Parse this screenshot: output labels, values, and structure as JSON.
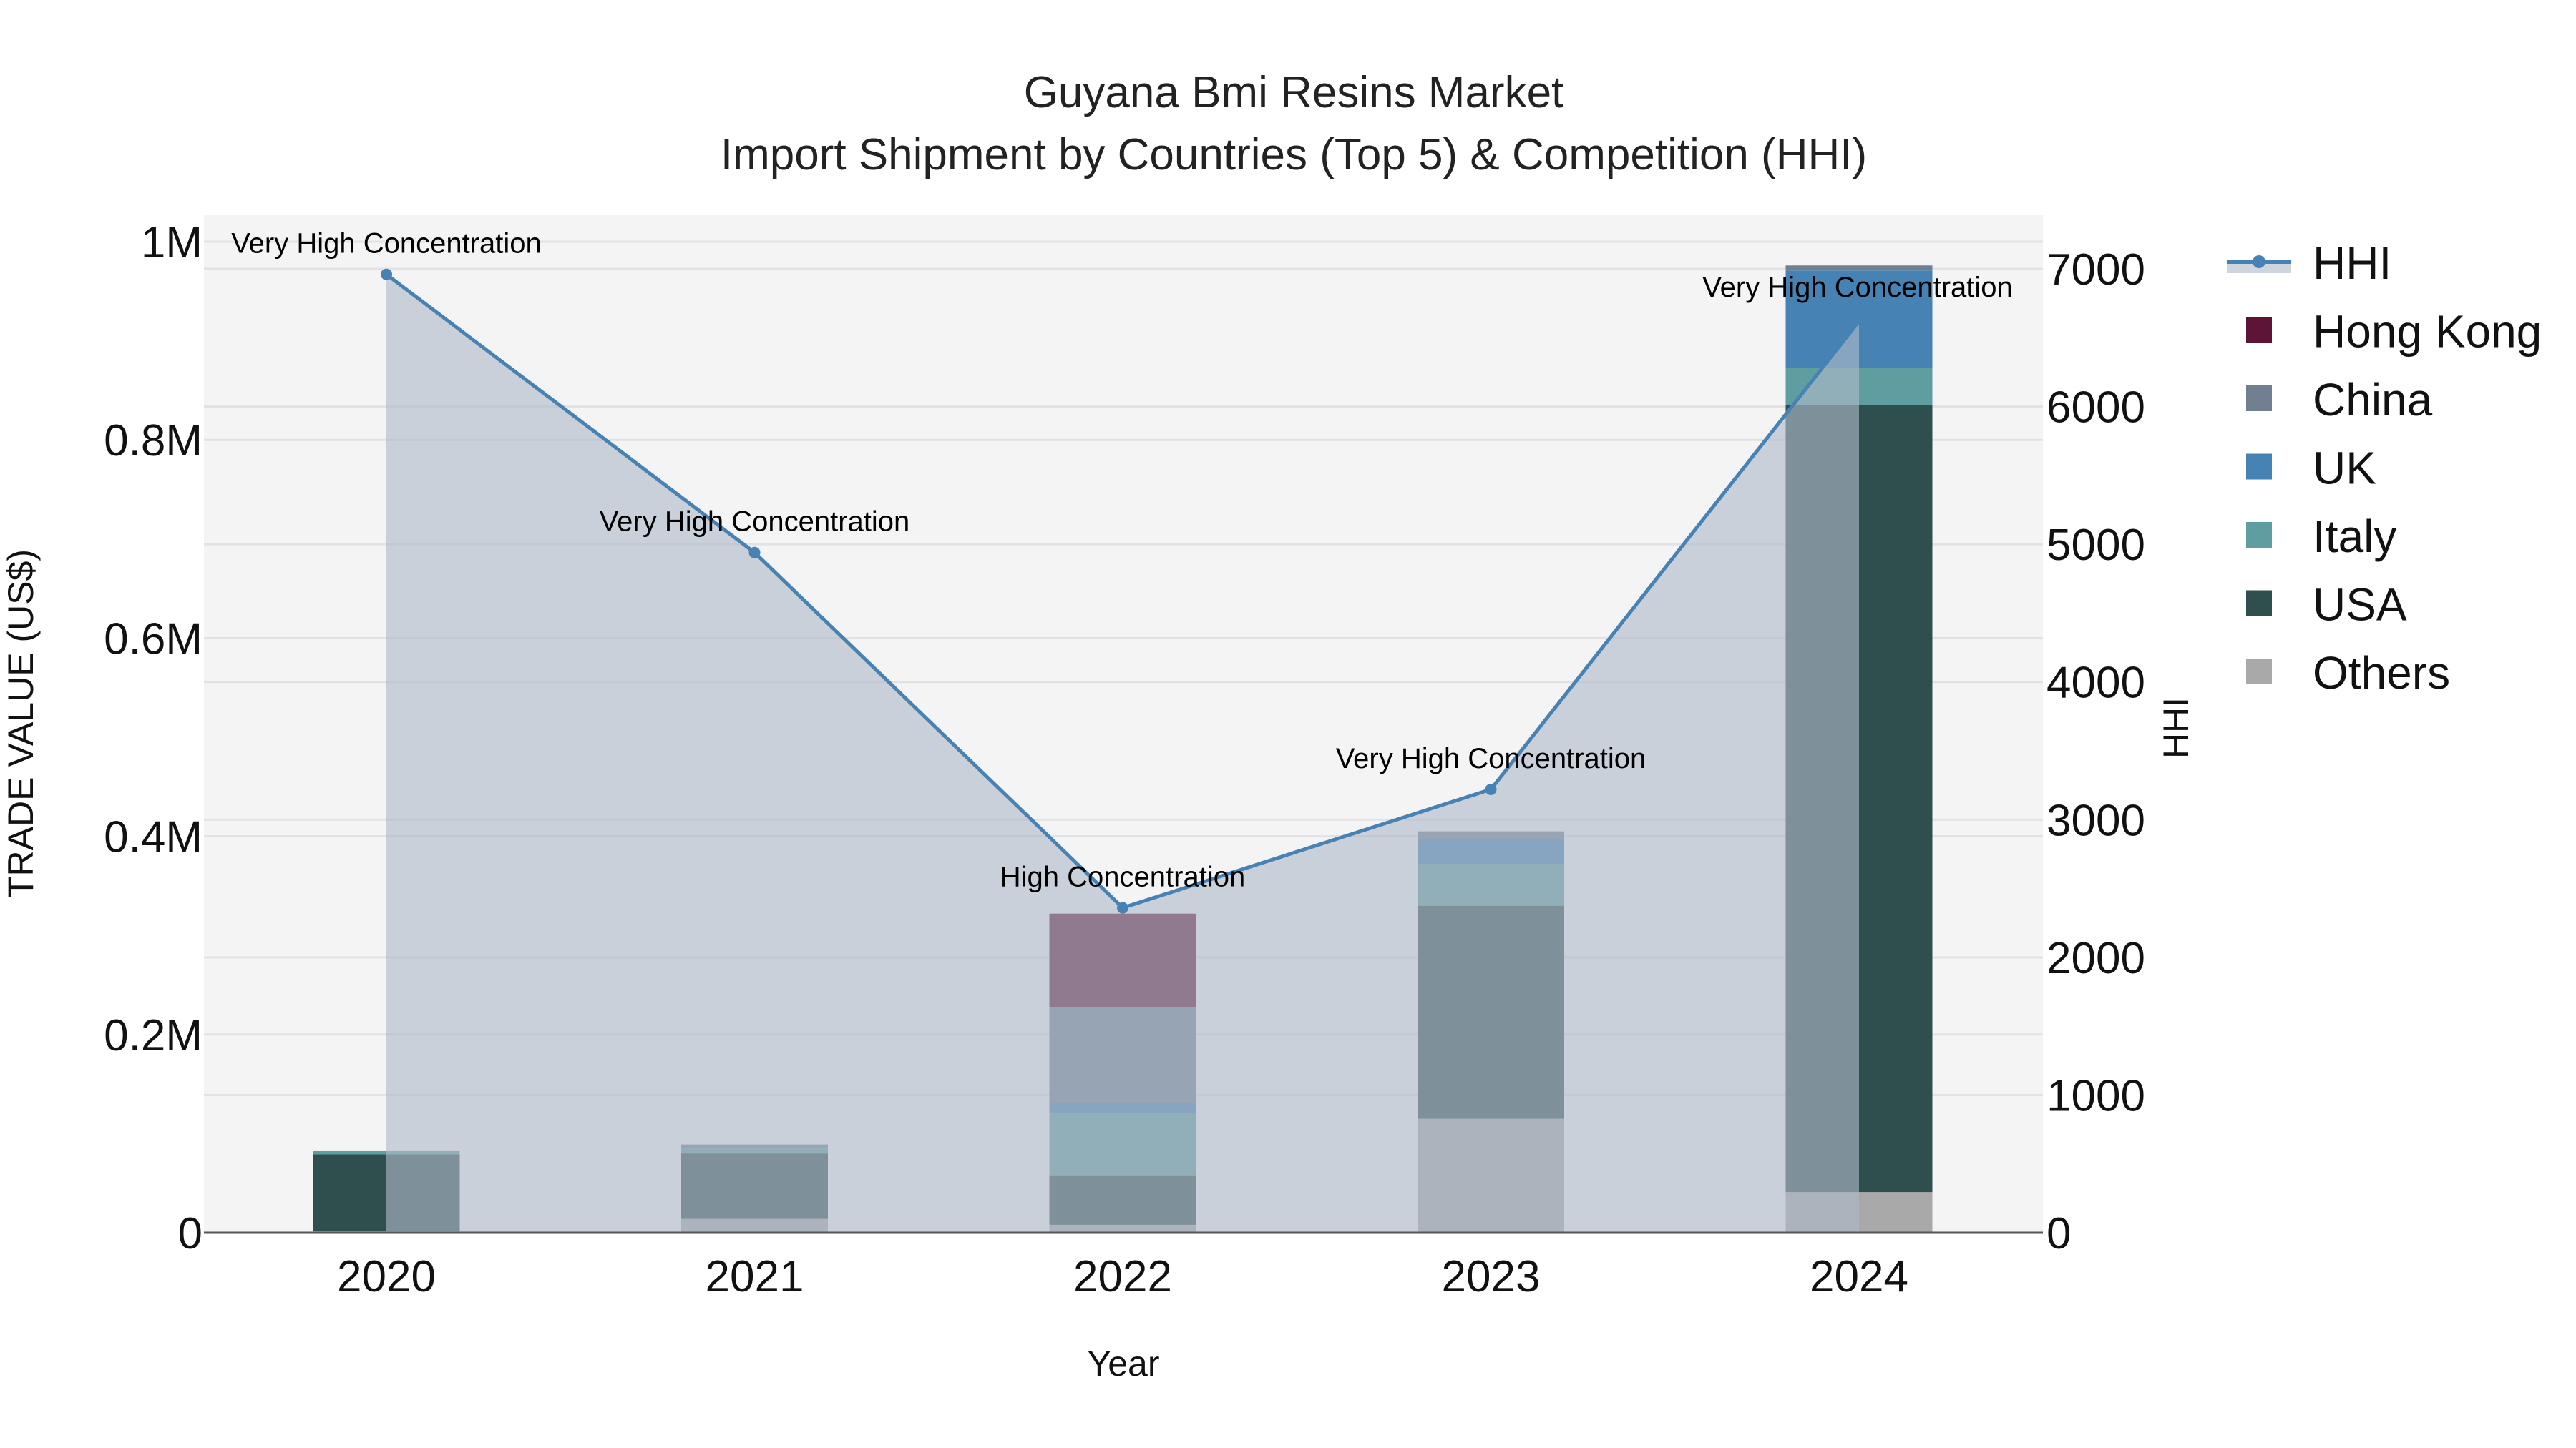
{
  "title": {
    "line1": "Guyana Bmi Resins Market",
    "line2": "Import Shipment by Countries (Top 5) & Competition (HHI)"
  },
  "axes": {
    "x_title": "Year",
    "y_left_title": "TRADE VALUE (US$)",
    "y_right_title": "HHI",
    "y_left_ticks": [
      "0",
      "0.2M",
      "0.4M",
      "0.6M",
      "0.8M",
      "1M"
    ],
    "y_right_ticks": [
      "0",
      "1000",
      "2000",
      "3000",
      "4000",
      "5000",
      "6000",
      "7000"
    ]
  },
  "legend": [
    {
      "name": "HHI",
      "type": "line",
      "color": "#4682b4"
    },
    {
      "name": "Hong Kong",
      "type": "box",
      "color": "#5e1436"
    },
    {
      "name": "China",
      "type": "box",
      "color": "#708090"
    },
    {
      "name": "UK",
      "type": "box",
      "color": "#4682b4"
    },
    {
      "name": "Italy",
      "type": "box",
      "color": "#5f9ea0"
    },
    {
      "name": "USA",
      "type": "box",
      "color": "#2f4f4f"
    },
    {
      "name": "Others",
      "type": "box",
      "color": "#a9a9a9"
    }
  ],
  "colors": {
    "plot_bg": "#f4f4f4",
    "grid": "#e2e2e2",
    "hhi_line": "#4682b4",
    "hhi_fill": "rgba(176,186,200,0.62)",
    "axis_line": "#555555"
  },
  "chart_data": {
    "type": "bar",
    "title": "Guyana Bmi Resins Market — Import Shipment by Countries (Top 5) & Competition (HHI)",
    "xlabel": "Year",
    "ylabel": "TRADE VALUE (US$)",
    "y2label": "HHI",
    "categories": [
      "2020",
      "2021",
      "2022",
      "2023",
      "2024"
    ],
    "stacked": true,
    "ylim": [
      0,
      1000000
    ],
    "y2lim": [
      0,
      7000
    ],
    "grid": true,
    "legend_position": "right",
    "series": [
      {
        "name": "Others",
        "color": "#a9a9a9",
        "values": [
          2000,
          14000,
          8000,
          115000,
          41000
        ]
      },
      {
        "name": "USA",
        "color": "#2f4f4f",
        "values": [
          77000,
          66000,
          50000,
          215000,
          794000
        ]
      },
      {
        "name": "Italy",
        "color": "#5f9ea0",
        "values": [
          4000,
          5000,
          63000,
          42000,
          38000
        ]
      },
      {
        "name": "UK",
        "color": "#4682b4",
        "values": [
          0,
          0,
          10000,
          25000,
          98000
        ]
      },
      {
        "name": "China",
        "color": "#708090",
        "values": [
          0,
          4000,
          97000,
          8000,
          5000
        ]
      },
      {
        "name": "Hong Kong",
        "color": "#5e1436",
        "values": [
          0,
          0,
          94000,
          0,
          0
        ]
      }
    ],
    "line_series": {
      "name": "HHI",
      "axis": "right",
      "type": "line+area",
      "color": "#4682b4",
      "values": [
        6960,
        4940,
        2360,
        3220,
        6620
      ]
    },
    "annotations": [
      {
        "x": "2020",
        "text": "Very High Concentration"
      },
      {
        "x": "2021",
        "text": "Very High Concentration"
      },
      {
        "x": "2022",
        "text": "High Concentration"
      },
      {
        "x": "2023",
        "text": "Very High Concentration"
      },
      {
        "x": "2024",
        "text": "Very High Concentration"
      }
    ]
  }
}
